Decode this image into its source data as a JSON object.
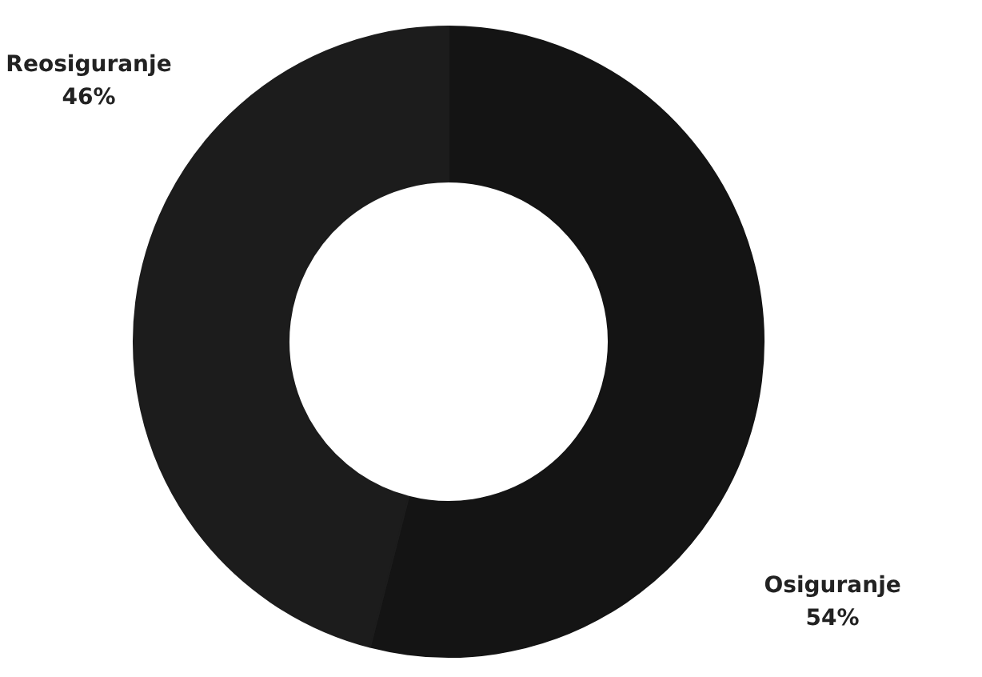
{
  "chart_data": {
    "type": "donut",
    "categories": [
      "Osiguranje",
      "Reosiguranje"
    ],
    "values": [
      54,
      46
    ],
    "colors": [
      "#141414",
      "#1c1c1c"
    ],
    "value_labels": [
      "54%",
      "46%"
    ]
  }
}
